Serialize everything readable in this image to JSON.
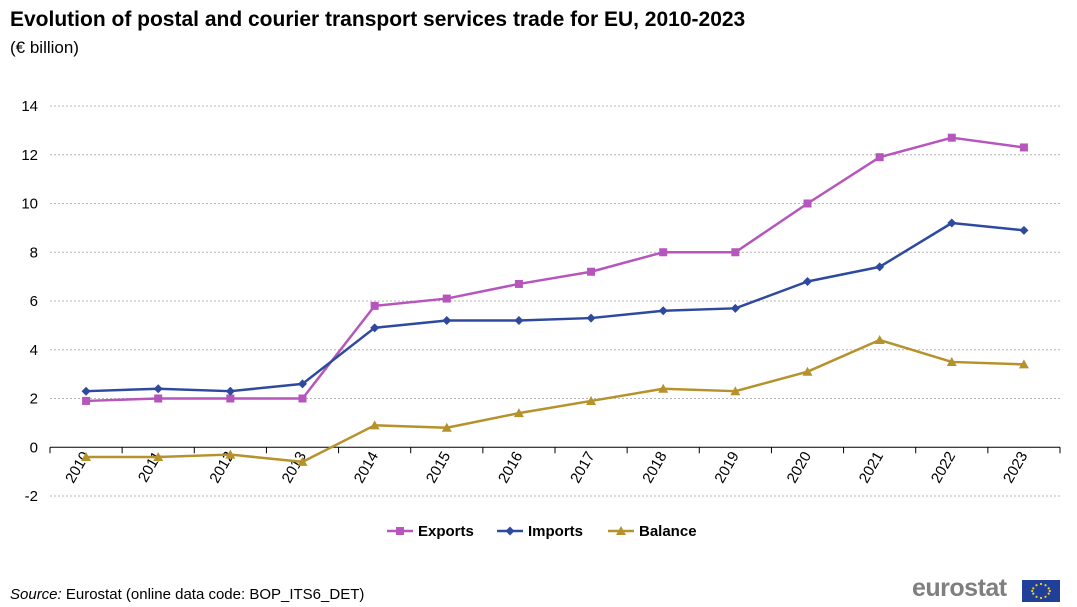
{
  "header": {
    "title": "Evolution of postal and courier transport services trade for EU, 2010-2023",
    "subtitle": "(€ billion)"
  },
  "footer": {
    "source_label": "Source:",
    "source_text": " Eurostat (online data code: BOP_ITS6_DET)",
    "logo_text": "eurostat"
  },
  "chart_data": {
    "type": "line",
    "title": "Evolution of postal and courier transport services trade for EU, 2010-2023",
    "subtitle": "(€ billion)",
    "x": [
      "2010",
      "2011",
      "2012",
      "2013",
      "2014",
      "2015",
      "2016",
      "2017",
      "2018",
      "2019",
      "2020",
      "2021",
      "2022",
      "2023"
    ],
    "ylim": [
      -2,
      14
    ],
    "yticks": [
      -2,
      0,
      2,
      4,
      6,
      8,
      10,
      12,
      14
    ],
    "grid": "horizontal dashed",
    "legend_position": "bottom",
    "series": [
      {
        "name": "Exports",
        "color": "#b656bd",
        "marker": "square",
        "values": [
          1.9,
          2.0,
          2.0,
          2.0,
          5.8,
          6.1,
          6.7,
          7.2,
          8.0,
          8.0,
          10.0,
          11.9,
          12.7,
          12.3
        ]
      },
      {
        "name": "Imports",
        "color": "#2e4a9e",
        "marker": "diamond",
        "values": [
          2.3,
          2.4,
          2.3,
          2.6,
          4.9,
          5.2,
          5.2,
          5.3,
          5.6,
          5.7,
          6.8,
          7.4,
          9.2,
          8.9
        ]
      },
      {
        "name": "Balance",
        "color": "#b5922b",
        "marker": "triangle",
        "values": [
          -0.4,
          -0.4,
          -0.3,
          -0.6,
          0.9,
          0.8,
          1.4,
          1.9,
          2.4,
          2.3,
          3.1,
          4.4,
          3.5,
          3.4
        ]
      }
    ]
  }
}
